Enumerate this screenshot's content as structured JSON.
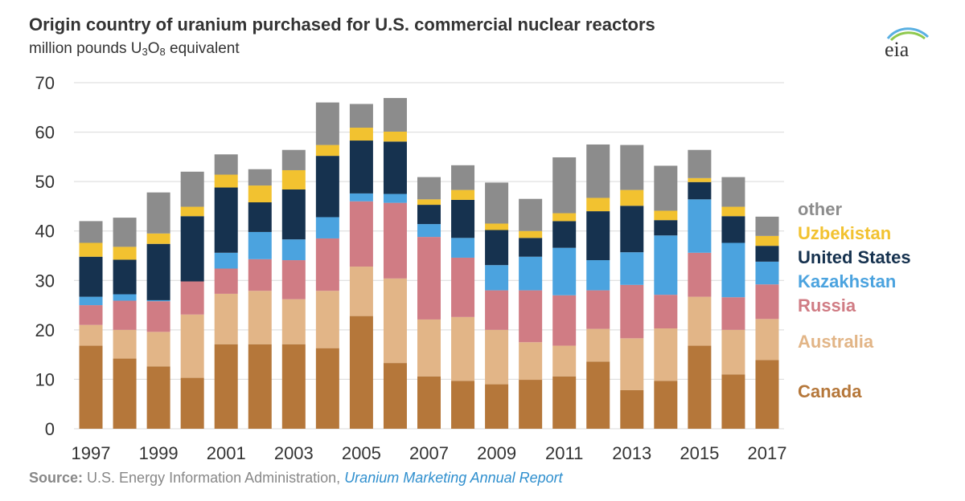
{
  "header": {
    "title": "Origin country of uranium purchased for U.S. commercial nuclear reactors",
    "subtitle_pre": "million pounds U",
    "subtitle_sub1": "3",
    "subtitle_mid": "O",
    "subtitle_sub2": "8",
    "subtitle_post": " equivalent"
  },
  "logo": {
    "text": "eia"
  },
  "source": {
    "label": "Source:",
    "text": " U.S. Energy Information Administration, ",
    "report": "Uranium Marketing Annual Report"
  },
  "chart_data": {
    "type": "bar",
    "stacked": true,
    "categories": [
      "1997",
      "1998",
      "1999",
      "2000",
      "2001",
      "2002",
      "2003",
      "2004",
      "2005",
      "2006",
      "2007",
      "2008",
      "2009",
      "2010",
      "2011",
      "2012",
      "2013",
      "2014",
      "2015",
      "2016",
      "2017"
    ],
    "x_tick_labels": [
      "1997",
      "1999",
      "2001",
      "2003",
      "2005",
      "2007",
      "2009",
      "2011",
      "2013",
      "2015",
      "2017"
    ],
    "ylim": [
      0,
      70
    ],
    "y_ticks": [
      0,
      10,
      20,
      30,
      40,
      50,
      60,
      70
    ],
    "grid": true,
    "legend_position": "right",
    "series": [
      {
        "name": "Canada",
        "color": "#b5773a",
        "label_color": "#b5773a",
        "values": [
          16.8,
          14.2,
          12.6,
          10.3,
          17.1,
          17.1,
          17.1,
          16.3,
          22.8,
          13.3,
          10.6,
          9.7,
          9.0,
          9.9,
          10.6,
          13.6,
          7.8,
          9.7,
          16.8,
          11.0,
          13.9
        ]
      },
      {
        "name": "Australia",
        "color": "#e2b587",
        "label_color": "#e2b587",
        "values": [
          4.2,
          5.8,
          7.0,
          12.8,
          10.2,
          10.8,
          9.1,
          11.6,
          10.0,
          17.1,
          11.5,
          12.9,
          11.0,
          7.6,
          6.2,
          6.6,
          10.5,
          10.6,
          9.9,
          9.0,
          8.3
        ]
      },
      {
        "name": "Russia",
        "color": "#d07c84",
        "label_color": "#d07c84",
        "values": [
          4.0,
          5.9,
          6.2,
          6.7,
          5.1,
          6.4,
          7.9,
          10.6,
          13.2,
          15.3,
          16.7,
          12.0,
          8.0,
          10.5,
          10.2,
          7.8,
          10.8,
          6.8,
          8.9,
          6.6,
          7.0
        ]
      },
      {
        "name": "Kazakhstan",
        "color": "#4ba3df",
        "label_color": "#4ba3df",
        "values": [
          1.7,
          1.3,
          0.2,
          0.0,
          3.2,
          5.5,
          4.2,
          4.3,
          1.6,
          1.8,
          2.6,
          4.0,
          5.1,
          6.8,
          9.6,
          6.1,
          6.6,
          12.0,
          10.8,
          11.0,
          4.6
        ]
      },
      {
        "name": "United States",
        "color": "#16324f",
        "label_color": "#16324f",
        "values": [
          8.1,
          7.0,
          11.4,
          13.2,
          13.2,
          6.0,
          10.1,
          12.4,
          10.7,
          10.6,
          3.9,
          7.7,
          7.1,
          3.8,
          5.4,
          9.9,
          9.4,
          3.1,
          3.5,
          5.4,
          3.2
        ]
      },
      {
        "name": "Uzbekistan",
        "color": "#f2c230",
        "label_color": "#f2c230",
        "values": [
          2.8,
          2.6,
          2.1,
          1.9,
          2.6,
          3.4,
          3.9,
          2.2,
          2.6,
          2.0,
          1.1,
          2.0,
          1.3,
          1.4,
          1.6,
          2.7,
          3.2,
          1.9,
          0.8,
          1.9,
          2.0
        ]
      },
      {
        "name": "other",
        "color": "#8c8c8c",
        "label_color": "#8c8c8c",
        "values": [
          4.4,
          5.9,
          8.3,
          7.1,
          4.1,
          3.3,
          4.1,
          8.6,
          4.8,
          6.8,
          4.5,
          5.0,
          8.3,
          6.5,
          11.3,
          10.8,
          9.1,
          9.1,
          5.7,
          6.0,
          3.9
        ]
      }
    ]
  }
}
